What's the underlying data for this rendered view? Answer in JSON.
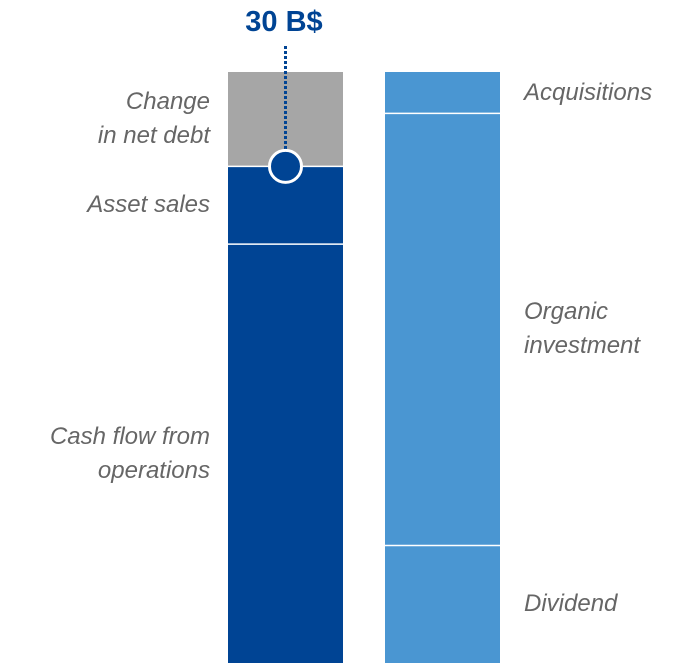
{
  "chart_data": {
    "type": "stacked_bar",
    "annotation": "30 B$",
    "bars": [
      {
        "segments": [
          {
            "name": "Cash flow from\noperations",
            "color": "#004494",
            "value": 25.3
          },
          {
            "name": "Asset sales",
            "color": "#004494",
            "value": 4.7
          },
          {
            "name": "Change\nin net debt",
            "color": "#a6a6a6",
            "value": 5.7
          }
        ]
      },
      {
        "segments": [
          {
            "name": "Dividend",
            "color": "#4a96d2",
            "value": 7.1
          },
          {
            "name": "Organic\ninvestment",
            "color": "#4a96d2",
            "value": 26.1
          },
          {
            "name": "Acquisitions",
            "color": "#4a96d2",
            "value": 2.5
          }
        ]
      }
    ]
  }
}
